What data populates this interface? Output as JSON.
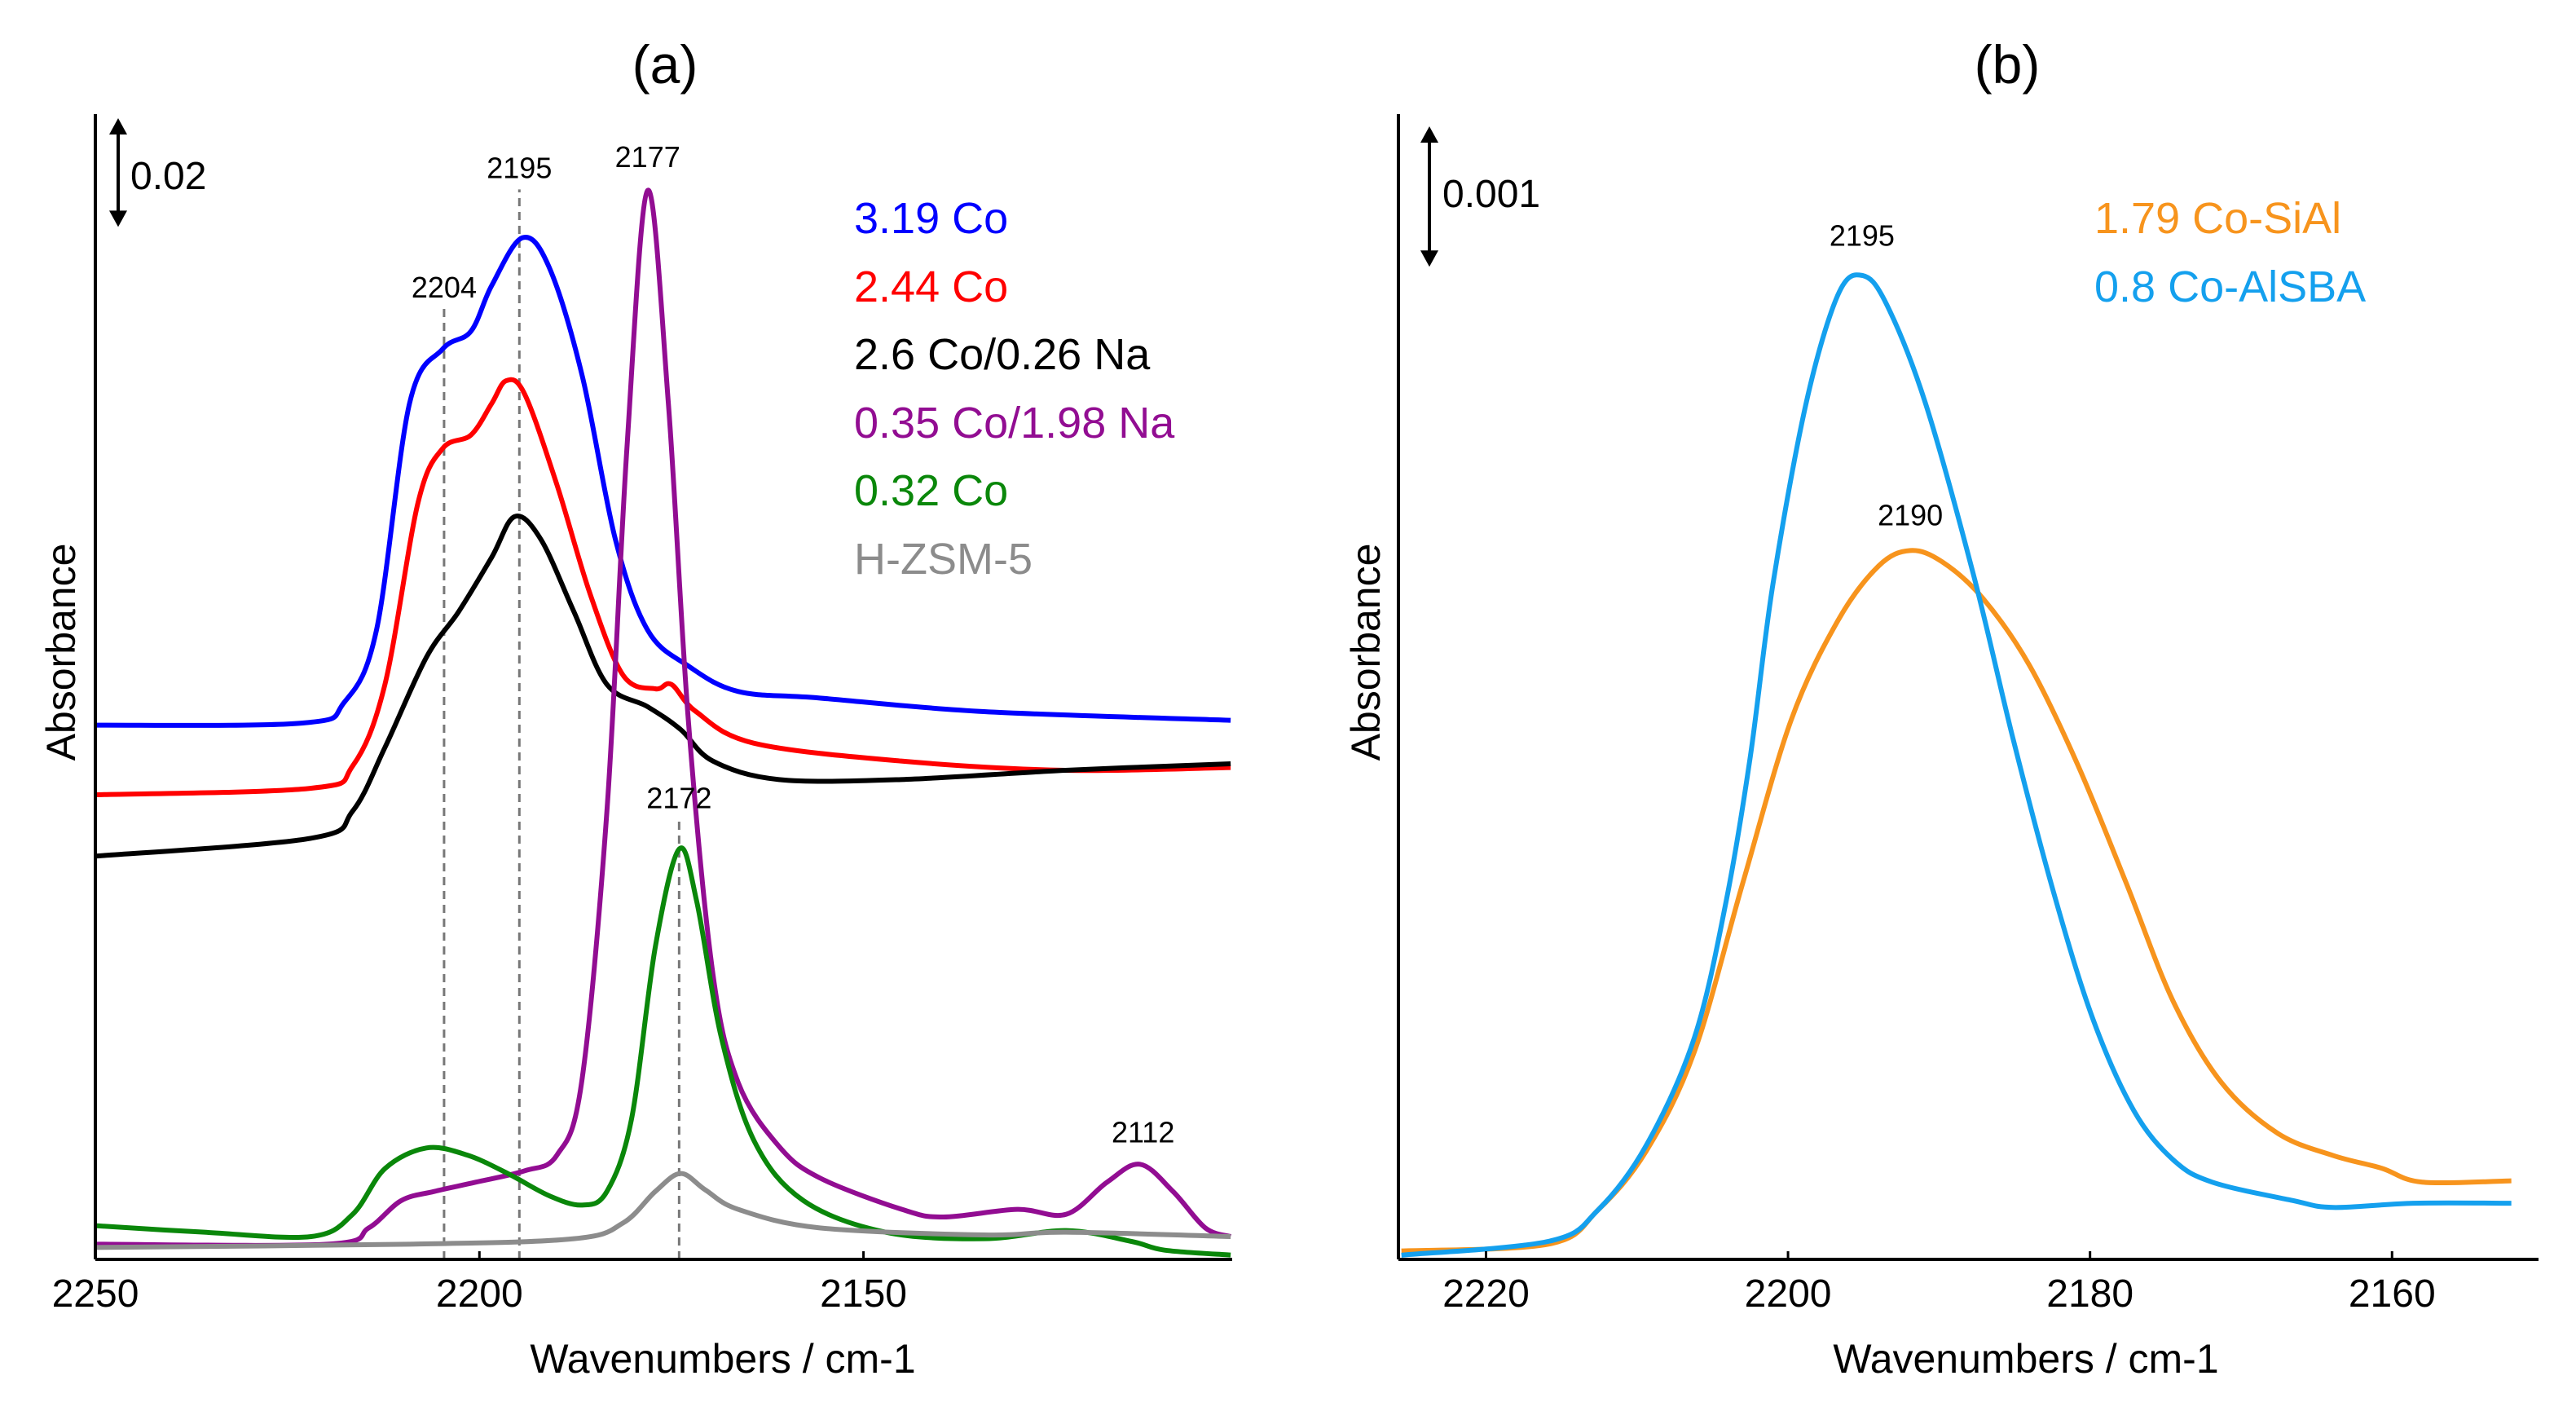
{
  "chart_data": [
    {
      "type": "line",
      "title": "(a)",
      "xlabel": "Wavenumbers / cm-1",
      "ylabel": "Absorbance",
      "xlim": [
        2250,
        2102
      ],
      "ylim": [
        0,
        0.21
      ],
      "xticks": [
        2250,
        2200,
        2150
      ],
      "grid": false,
      "legend_placement": "top-right",
      "scale_bar": {
        "label": "0.02",
        "value": 0.02
      },
      "series": [
        {
          "name": "3.19 Co",
          "color": "#0000FF",
          "x": [
            2250,
            2223,
            2217.6,
            2213.4,
            2209.1,
            2204.8,
            2201.1,
            2198.4,
            2194.4,
            2190.9,
            2186.6,
            2182.3,
            2178.1,
            2172.8,
            2166.3,
            2155.7,
            2134.3,
            2102.2
          ],
          "y": [
            0.0983,
            0.0987,
            0.1025,
            0.1158,
            0.1575,
            0.1675,
            0.1708,
            0.1792,
            0.188,
            0.1825,
            0.1625,
            0.1325,
            0.1158,
            0.1092,
            0.1045,
            0.1033,
            0.1008,
            0.0992
          ]
        },
        {
          "name": "2.44 Co",
          "color": "#FF0000",
          "x": [
            2250,
            2221.9,
            2216.5,
            2212.3,
            2208.0,
            2204.8,
            2201.1,
            2198.4,
            2196.5,
            2194.1,
            2189.9,
            2185.6,
            2181.3,
            2177.1,
            2175.0,
            2171.8,
            2164.3,
            2145.1,
            2123.7,
            2102.2
          ],
          "y": [
            0.0855,
            0.0867,
            0.0908,
            0.1058,
            0.1392,
            0.1492,
            0.1517,
            0.1575,
            0.1617,
            0.1592,
            0.1425,
            0.1225,
            0.1075,
            0.105,
            0.1058,
            0.1008,
            0.095,
            0.0917,
            0.09,
            0.0905
          ]
        },
        {
          "name": "2.6 Co/0.26 Na",
          "color": "#000000",
          "x": [
            2250,
            2221.9,
            2216.5,
            2212.3,
            2206.9,
            2202.7,
            2198.4,
            2195.4,
            2192.0,
            2187.7,
            2183.4,
            2178.1,
            2173.8,
            2169.6,
            2161.0,
            2145.1,
            2123.7,
            2102.2
          ],
          "y": [
            0.0742,
            0.0775,
            0.0825,
            0.0942,
            0.1108,
            0.1192,
            0.1292,
            0.1367,
            0.1325,
            0.1192,
            0.1058,
            0.1017,
            0.0975,
            0.0917,
            0.0883,
            0.0883,
            0.09,
            0.0912
          ]
        },
        {
          "name": "0.35 Co/1.98 Na",
          "color": "#920D92",
          "x": [
            2250,
            2219.8,
            2214.4,
            2210.2,
            2205.9,
            2200.5,
            2194.1,
            2189.9,
            2186.7,
            2183.4,
            2180.8,
            2178.1,
            2175.4,
            2172.8,
            2169.6,
            2166.3,
            2161.0,
            2155.7,
            2145.0,
            2139.6,
            2130.0,
            2123.6,
            2118.3,
            2114.0,
            2109.7,
            2105.5,
            2102.2
          ],
          "y": [
            0.0028,
            0.0028,
            0.0058,
            0.0108,
            0.0125,
            0.0142,
            0.0163,
            0.0192,
            0.0325,
            0.0825,
            0.1492,
            0.1967,
            0.1575,
            0.0992,
            0.0525,
            0.0325,
            0.0208,
            0.015,
            0.0092,
            0.0078,
            0.0092,
            0.0083,
            0.0142,
            0.0175,
            0.0125,
            0.0058,
            0.0042
          ]
        },
        {
          "name": "0.32 Co",
          "color": "#0A870A",
          "x": [
            2250,
            2235.8,
            2221.9,
            2216.5,
            2212.3,
            2206.9,
            2201.6,
            2196.3,
            2190.9,
            2186.6,
            2183.4,
            2180.2,
            2177.1,
            2174.0,
            2171.7,
            2168.5,
            2164.2,
            2157.8,
            2147.1,
            2134.3,
            2123.6,
            2115.1,
            2110.8,
            2102.2
          ],
          "y": [
            0.0062,
            0.005,
            0.0042,
            0.0083,
            0.0167,
            0.0205,
            0.0192,
            0.0158,
            0.0117,
            0.01,
            0.0125,
            0.0258,
            0.0575,
            0.0755,
            0.0658,
            0.0408,
            0.0217,
            0.0108,
            0.005,
            0.0038,
            0.0053,
            0.0033,
            0.0017,
            0.0008
          ]
        },
        {
          "name": "H-ZSM-5",
          "color": "#8C8C8C",
          "x": [
            2250,
            2209.1,
            2187.7,
            2181.3,
            2177.1,
            2173.8,
            2170.6,
            2166.3,
            2155.7,
            2134.3,
            2123.6,
            2102.2
          ],
          "y": [
            0.0022,
            0.0028,
            0.0038,
            0.0067,
            0.0125,
            0.0158,
            0.0128,
            0.0092,
            0.0058,
            0.0045,
            0.005,
            0.0042
          ]
        }
      ],
      "annotations": [
        {
          "label": "2204",
          "x": 2204.6,
          "y": 0.177,
          "dashed": true
        },
        {
          "label": "2195",
          "x": 2194.8,
          "y": 0.199,
          "dashed": true
        },
        {
          "label": "2177",
          "x": 2178.1,
          "y": 0.201,
          "dashed": false
        },
        {
          "label": "2172",
          "x": 2174.0,
          "y": 0.083,
          "dashed": true
        },
        {
          "label": "2112",
          "x": 2113.6,
          "y": 0.0215,
          "dashed": false
        }
      ]
    },
    {
      "type": "line",
      "title": "(b)",
      "xlabel": "Wavenumbers / cm-1",
      "ylabel": "Absorbance",
      "xlim": [
        2225.8,
        2150.3
      ],
      "ylim": [
        0,
        0.00813
      ],
      "xticks": [
        2220,
        2200,
        2180,
        2160
      ],
      "grid": false,
      "legend_placement": "top-right",
      "scale_bar": {
        "label": "0.001",
        "value": 0.001
      },
      "series": [
        {
          "name": "1.79 Co-SiAl",
          "color": "#F7941D",
          "x": [
            2225.6,
            2215.8,
            2212.6,
            2209.4,
            2206.2,
            2203.0,
            2199.8,
            2196.7,
            2194.0,
            2191.9,
            2189.8,
            2187.1,
            2184.0,
            2180.8,
            2177.6,
            2174.5,
            2171.3,
            2167.6,
            2163.9,
            2160.7,
            2158.0,
            2152.1
          ],
          "y": [
            6e-05,
            0.00011,
            0.00035,
            0.00077,
            0.00148,
            0.00268,
            0.00384,
            0.00455,
            0.00494,
            0.00505,
            0.00497,
            0.00471,
            0.00423,
            0.00352,
            0.00268,
            0.00184,
            0.00126,
            0.0009,
            0.00074,
            0.00065,
            0.00055,
            0.00056
          ]
        },
        {
          "name": "0.8 Co-AlSBA",
          "color": "#14A0EE",
          "x": [
            2225.6,
            2215.8,
            2212.6,
            2209.4,
            2206.2,
            2204.1,
            2202.5,
            2201.0,
            2198.8,
            2196.7,
            2195.1,
            2193.5,
            2190.9,
            2187.7,
            2185.1,
            2182.4,
            2179.8,
            2177.1,
            2174.5,
            2171.9,
            2166.6,
            2163.9,
            2158.6,
            2152.1
          ],
          "y": [
            3e-05,
            0.00013,
            0.00035,
            0.00081,
            0.00158,
            0.00255,
            0.00358,
            0.00481,
            0.0061,
            0.00687,
            0.00701,
            0.00681,
            0.0061,
            0.00487,
            0.00371,
            0.00261,
            0.00171,
            0.00106,
            0.00071,
            0.00055,
            0.00042,
            0.00037,
            0.0004,
            0.0004
          ]
        }
      ],
      "annotations": [
        {
          "label": "2195",
          "x": 2195.1,
          "y": 0.00722,
          "dashed": false
        },
        {
          "label": "2190",
          "x": 2191.9,
          "y": 0.00523,
          "dashed": false
        }
      ]
    }
  ]
}
